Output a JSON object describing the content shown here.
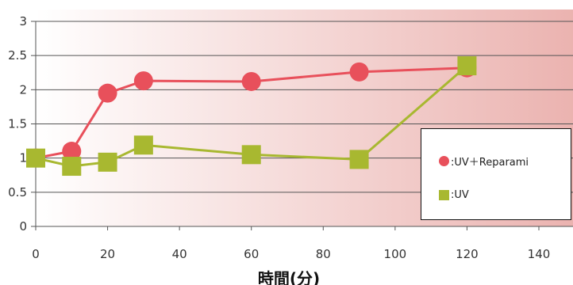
{
  "chart_data": {
    "type": "line",
    "xlabel": "時間(分)",
    "ylabel": "",
    "xlim": [
      0,
      140
    ],
    "ylim": [
      0,
      3
    ],
    "x_ticks": [
      "0",
      "20",
      "40",
      "60",
      "80",
      "100",
      "120",
      "140"
    ],
    "y_ticks": [
      "0",
      "0.5",
      "1",
      "1.5",
      "2",
      "2.5",
      "3"
    ],
    "grid": "horizontal",
    "legend_position": "right",
    "background": "gradient white to pink",
    "series": [
      {
        "name": ":UV＋Reparami",
        "marker": "circle",
        "color": "#e8505b",
        "x": [
          0,
          10,
          20,
          30,
          60,
          90,
          120
        ],
        "y": [
          1.0,
          1.1,
          1.95,
          2.13,
          2.12,
          2.26,
          2.32
        ]
      },
      {
        "name": ":UV",
        "marker": "square",
        "color": "#a8b830",
        "x": [
          0,
          10,
          20,
          30,
          60,
          90,
          120
        ],
        "y": [
          1.0,
          0.88,
          0.94,
          1.19,
          1.05,
          0.98,
          2.35
        ]
      }
    ]
  }
}
